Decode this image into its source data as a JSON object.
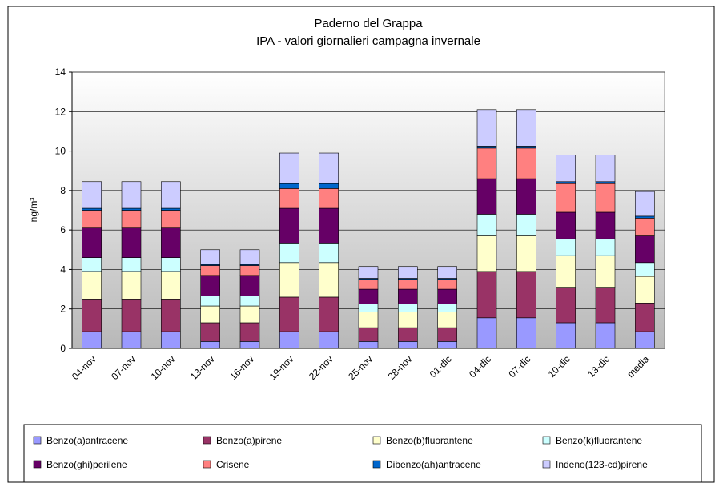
{
  "chart_data": {
    "type": "stacked-bar",
    "title": "Paderno del Grappa",
    "subtitle": "IPA - valori giornalieri campagna invernale",
    "ylabel": "ng/m³",
    "categories": [
      "04-nov",
      "07-nov",
      "10-nov",
      "13-nov",
      "16-nov",
      "19-nov",
      "22-nov",
      "25-nov",
      "28-nov",
      "01-dic",
      "04-dic",
      "07-dic",
      "10-dic",
      "13-dic",
      "media"
    ],
    "series": [
      {
        "name": "Benzo(a)antracene",
        "color": "#9999ff",
        "values": [
          0.85,
          0.85,
          0.85,
          0.35,
          0.35,
          0.85,
          0.85,
          0.35,
          0.35,
          0.35,
          1.55,
          1.55,
          1.3,
          1.3,
          0.85
        ]
      },
      {
        "name": "Benzo(a)pirene",
        "color": "#993366",
        "values": [
          1.65,
          1.65,
          1.65,
          0.95,
          0.95,
          1.75,
          1.75,
          0.7,
          0.7,
          0.7,
          2.35,
          2.35,
          1.8,
          1.8,
          1.45
        ]
      },
      {
        "name": "Benzo(b)fluorantene",
        "color": "#ffffcc",
        "values": [
          1.4,
          1.4,
          1.4,
          0.85,
          0.85,
          1.75,
          1.75,
          0.8,
          0.8,
          0.8,
          1.8,
          1.8,
          1.6,
          1.6,
          1.35
        ]
      },
      {
        "name": "Benzo(k)fluorantene",
        "color": "#ccffff",
        "values": [
          0.7,
          0.7,
          0.7,
          0.5,
          0.5,
          0.95,
          0.95,
          0.4,
          0.4,
          0.4,
          1.1,
          1.1,
          0.85,
          0.85,
          0.7
        ]
      },
      {
        "name": "Benzo(ghi)perilene",
        "color": "#660066",
        "values": [
          1.5,
          1.5,
          1.5,
          1.05,
          1.05,
          1.8,
          1.8,
          0.75,
          0.75,
          0.75,
          1.8,
          1.8,
          1.35,
          1.35,
          1.35
        ]
      },
      {
        "name": "Crisene",
        "color": "#ff8080",
        "values": [
          0.9,
          0.9,
          0.9,
          0.5,
          0.5,
          1.0,
          1.0,
          0.5,
          0.5,
          0.5,
          1.55,
          1.55,
          1.45,
          1.45,
          0.9
        ]
      },
      {
        "name": "Dibenzo(ah)antracene",
        "color": "#0066cc",
        "values": [
          0.1,
          0.1,
          0.1,
          0.05,
          0.05,
          0.25,
          0.25,
          0.05,
          0.05,
          0.05,
          0.1,
          0.1,
          0.1,
          0.1,
          0.1
        ]
      },
      {
        "name": "Indeno(123-cd)pirene",
        "color": "#ccccff",
        "values": [
          1.35,
          1.35,
          1.35,
          0.75,
          0.75,
          1.55,
          1.55,
          0.6,
          0.6,
          0.6,
          1.85,
          1.85,
          1.35,
          1.35,
          1.25
        ]
      }
    ],
    "ylim": [
      0,
      14
    ],
    "yticks": [
      0,
      2,
      4,
      6,
      8,
      10,
      12,
      14
    ],
    "grid": true
  }
}
